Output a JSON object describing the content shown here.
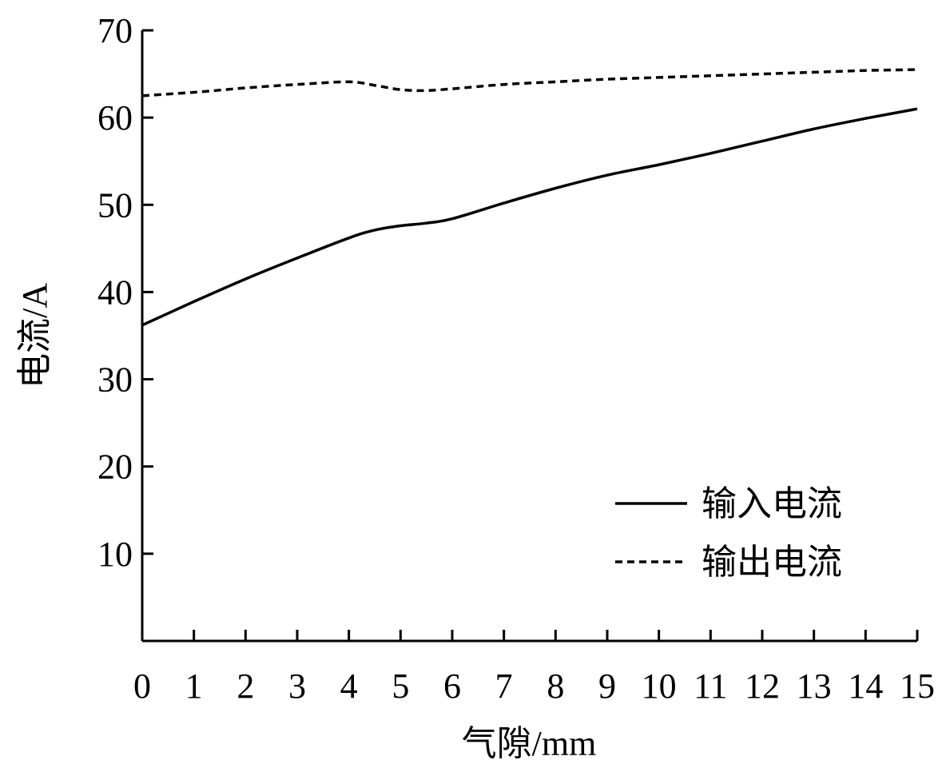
{
  "chart_data": {
    "type": "line",
    "xlabel": "气隙/mm",
    "ylabel": "电流/A",
    "xlim": [
      0,
      15
    ],
    "ylim": [
      0,
      70
    ],
    "xticks": [
      "0",
      "1",
      "2",
      "3",
      "4",
      "5",
      "6",
      "7",
      "8",
      "9",
      "10",
      "11",
      "12",
      "13",
      "14",
      "15"
    ],
    "yticks": [
      "10",
      "20",
      "30",
      "40",
      "50",
      "60",
      "70"
    ],
    "xtick_values": [
      0,
      1,
      2,
      3,
      4,
      5,
      6,
      7,
      8,
      9,
      10,
      11,
      12,
      13,
      14,
      15
    ],
    "ytick_values": [
      10,
      20,
      30,
      40,
      50,
      60,
      70
    ],
    "grid": false,
    "legend_position": "bottom-right",
    "series": [
      {
        "name": "输入电流",
        "style": "solid",
        "color": "#000000",
        "x": [
          0,
          1,
          2,
          3,
          4,
          4.5,
          5,
          5.5,
          6,
          7,
          8,
          9,
          10,
          11,
          12,
          13,
          14,
          15
        ],
        "y": [
          36.2,
          38.9,
          41.5,
          43.9,
          46.2,
          47.1,
          47.6,
          47.9,
          48.4,
          50.2,
          51.9,
          53.4,
          54.6,
          55.9,
          57.3,
          58.7,
          59.9,
          61.0
        ]
      },
      {
        "name": "输出电流",
        "style": "dashed",
        "color": "#000000",
        "x": [
          0,
          1,
          2,
          3,
          4,
          4.5,
          5,
          5.5,
          6,
          7,
          8,
          9,
          10,
          11,
          12,
          13,
          14,
          15
        ],
        "y": [
          62.5,
          62.9,
          63.4,
          63.8,
          64.1,
          63.7,
          63.2,
          63.1,
          63.3,
          63.8,
          64.1,
          64.4,
          64.6,
          64.8,
          65.0,
          65.2,
          65.4,
          65.5
        ]
      }
    ]
  }
}
